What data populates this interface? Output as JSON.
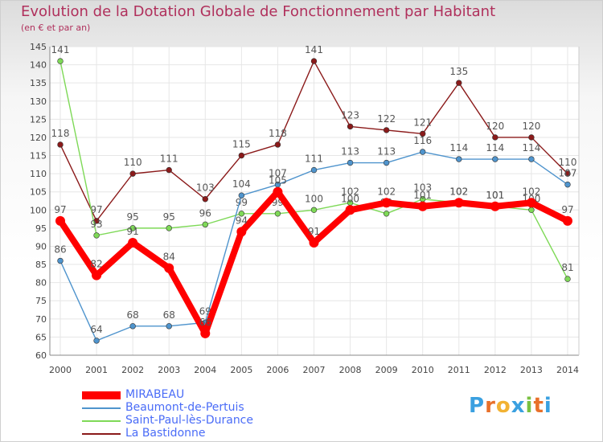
{
  "chart_data": {
    "type": "line",
    "title": "Evolution de la Dotation Globale de Fonctionnement par Habitant",
    "subtitle": "(en € et par an)",
    "xlabel": "",
    "ylabel": "",
    "ylim": [
      60,
      145
    ],
    "y_ticks": [
      "60",
      "65",
      "70",
      "75",
      "80",
      "85",
      "90",
      "95",
      "100",
      "105",
      "110",
      "115",
      "120",
      "125",
      "130",
      "135",
      "140",
      "145"
    ],
    "categories": [
      "2000",
      "2001",
      "2002",
      "2003",
      "2004",
      "2005",
      "2006",
      "2007",
      "2008",
      "2009",
      "2010",
      "2011",
      "2012",
      "2013",
      "2014"
    ],
    "series": [
      {
        "name": "MIRABEAU",
        "color": "#ff0000",
        "values": [
          97,
          82,
          91,
          84,
          66,
          94,
          105,
          91,
          100,
          102,
          101,
          102,
          101,
          102,
          97
        ],
        "labels": [
          "97",
          "82",
          "91",
          "84",
          "66",
          "94",
          "105",
          "91",
          "100",
          "102",
          "101",
          "102",
          "101",
          "102",
          "97"
        ]
      },
      {
        "name": "Beaumont-de-Pertuis",
        "color": "#4f94cd",
        "values": [
          86,
          64,
          68,
          68,
          69,
          104,
          107,
          111,
          113,
          113,
          116,
          114,
          114,
          114,
          107
        ],
        "labels": [
          "86",
          "64",
          "68",
          "68",
          "69",
          "104",
          "107",
          "111",
          "113",
          "113",
          "116",
          "114",
          "114",
          "114",
          "107"
        ]
      },
      {
        "name": "Saint-Paul-lès-Durance",
        "color": "#7ed957",
        "values": [
          141,
          93,
          95,
          95,
          96,
          99,
          99,
          100,
          102,
          99,
          103,
          102,
          101,
          100,
          81
        ],
        "labels": [
          "141",
          "93",
          "95",
          "95",
          "96",
          "99",
          "99",
          "100",
          "102",
          "99",
          "103",
          "102",
          "101",
          "100",
          "81"
        ]
      },
      {
        "name": "La Bastidonne",
        "color": "#8b1a1a",
        "values": [
          118,
          97,
          110,
          111,
          103,
          115,
          118,
          141,
          123,
          122,
          121,
          135,
          120,
          120,
          110
        ],
        "labels": [
          "118",
          "97",
          "110",
          "111",
          "103",
          "115",
          "118",
          "141",
          "123",
          "122",
          "121",
          "135",
          "120",
          "120",
          "110"
        ]
      }
    ],
    "grid": true,
    "legend_position": "bottom-left"
  },
  "logo": {
    "text": "Proxiti"
  },
  "colors": {
    "title": "#b0305c",
    "legend_text": "#4a6cf7",
    "grid": "#e6e6e6"
  }
}
